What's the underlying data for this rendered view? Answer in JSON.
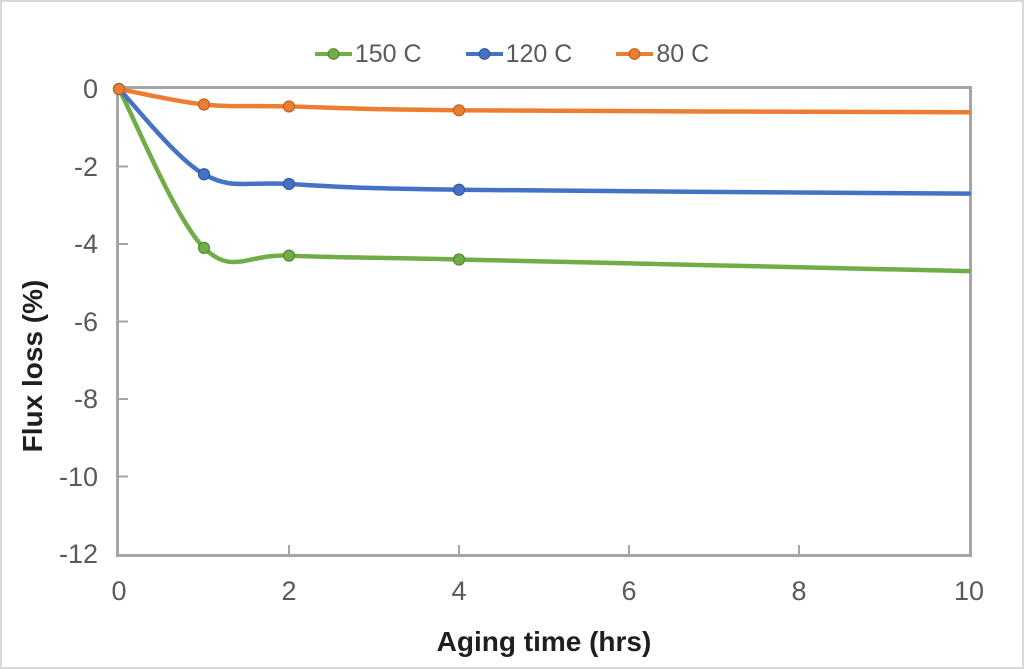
{
  "chart_data": {
    "type": "line",
    "title": "",
    "xlabel": "Aging time (hrs)",
    "ylabel": "Flux loss (%)",
    "xlim": [
      0,
      10
    ],
    "ylim": [
      -12,
      0
    ],
    "x_ticks": [
      0,
      2,
      4,
      6,
      8,
      10
    ],
    "y_ticks": [
      0,
      -2,
      -4,
      -6,
      -8,
      -10,
      -12
    ],
    "grid": false,
    "legend_position": "top-center",
    "line_shape": "smooth",
    "marker": "circle",
    "x": [
      0,
      1,
      2,
      4,
      10
    ],
    "marker_x": [
      0,
      1,
      2,
      4
    ],
    "series": [
      {
        "name": "150 C",
        "color": "#70AD47",
        "values": [
          0,
          -4.1,
          -4.3,
          -4.4,
          -4.7
        ]
      },
      {
        "name": "120 C",
        "color": "#4472C4",
        "values": [
          0,
          -2.2,
          -2.45,
          -2.6,
          -2.7
        ]
      },
      {
        "name": "80 C",
        "color": "#ED7D31",
        "values": [
          0,
          -0.4,
          -0.45,
          -0.55,
          -0.6
        ]
      }
    ],
    "colors": {
      "axis_line": "#a6a6a6",
      "tick_label": "#595959",
      "axis_title": "#1f1f1f",
      "legend_text": "#595959",
      "background": "#ffffff",
      "canvas_border": "#d9d9d9"
    }
  }
}
